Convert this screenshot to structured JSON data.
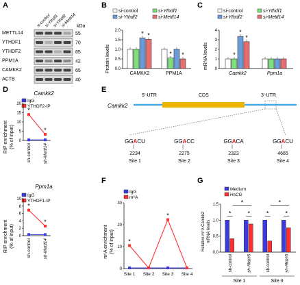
{
  "colors": {
    "control": "#ffffff",
    "ythdf1": "#7de07d",
    "ythdf2": "#6b9bd8",
    "mettl14": "#e86f6f",
    "igg": "#3b3be0",
    "ip": "#ff3030",
    "medium": "#3b3be0",
    "hscg": "#ff3030",
    "cds": "#f0b400",
    "utr": "#4aa8e0",
    "site": "#d62020"
  },
  "panels": {
    "A": {
      "label": "A",
      "lanes": [
        "si-control",
        "si-Ythdf1",
        "si-Ythdf2",
        "si-Mettl14"
      ],
      "kda_label": "kDa",
      "blots": [
        {
          "name": "METTL14",
          "kda": "55"
        },
        {
          "name": "YTHDF1",
          "kda": "70"
        },
        {
          "name": "YTHDF2",
          "kda": "65"
        },
        {
          "name": "PPM1A",
          "kda": "42"
        },
        {
          "name": "CAMKK2",
          "kda": "65"
        },
        {
          "name": "ACTB",
          "kda": "40"
        }
      ]
    },
    "B": {
      "label": "B",
      "legend": [
        "si-control",
        "si-Ythdf1",
        "si-Ythdf2",
        "si-Mettl14"
      ],
      "ylabel": "Protein levels",
      "star": "*"
    },
    "C": {
      "label": "C",
      "legend": [
        "si-control",
        "si-Ythdf1",
        "si-Ythdf2",
        "si-Mettl14"
      ],
      "ylabel": "mRNA levels",
      "star": "*"
    },
    "D": {
      "label": "D",
      "top_title": "Camkk2",
      "top_legend": [
        "IgG",
        "YTHDF2-IP"
      ],
      "bottom_title": "Ppm1a",
      "bottom_legend": [
        "IgG",
        "YTHDF1-IP"
      ],
      "ylabel": "RIP enrichment",
      "ylabel2": "(% of input)",
      "star": "*"
    },
    "E": {
      "label": "E",
      "gene": "Camkk2",
      "utr5": "5'-UTR",
      "cds": "CDS",
      "utr3": "3'-UTR",
      "sites": [
        {
          "pre": "GG",
          "A": "A",
          "post": "CU",
          "pos": "2234",
          "site": "Site 1"
        },
        {
          "pre": "GG",
          "A": "A",
          "post": "CC",
          "pos": "2275",
          "site": "Site 2"
        },
        {
          "pre": "GG",
          "A": "A",
          "post": "CA",
          "pos": "2323",
          "site": "Site 3"
        },
        {
          "pre": "GG",
          "A": "A",
          "post": "CU",
          "pos": "4665",
          "site": "Site 4"
        }
      ]
    },
    "F": {
      "label": "F",
      "legend": [
        "IgG",
        "m⁶A"
      ],
      "ylabel": "m⁶A enrichment",
      "ylabel2": "(% of input)",
      "star": "*"
    },
    "G": {
      "label": "G",
      "legend": [
        "Medium",
        "HsCG"
      ],
      "ylabel": "Relative m⁶A Camkk2",
      "ylabel2": "mRNA levels",
      "site_labels": [
        "Site 1",
        "Site 3"
      ],
      "star": "*"
    }
  },
  "chart_data": [
    {
      "panel": "B",
      "type": "bar",
      "categories": [
        "CAMKK2",
        "PPM1A"
      ],
      "series": [
        {
          "name": "si-control",
          "values": [
            1.0,
            1.0
          ]
        },
        {
          "name": "si-Ythdf1",
          "values": [
            1.0,
            0.55
          ]
        },
        {
          "name": "si-Ythdf2",
          "values": [
            1.6,
            1.0
          ]
        },
        {
          "name": "si-Mettl14",
          "values": [
            1.52,
            0.5
          ]
        }
      ],
      "ylabel": "Protein levels",
      "ylim": [
        0,
        2.0
      ],
      "yticks": [
        0.0,
        0.5,
        1.0,
        1.5,
        2.0
      ]
    },
    {
      "panel": "C",
      "type": "bar",
      "categories": [
        "Camkk2",
        "Ppm1a"
      ],
      "series": [
        {
          "name": "si-control",
          "values": [
            1.0,
            1.0
          ]
        },
        {
          "name": "si-Ythdf1",
          "values": [
            1.0,
            1.0
          ]
        },
        {
          "name": "si-Ythdf2",
          "values": [
            3.35,
            1.0
          ]
        },
        {
          "name": "si-Mettl14",
          "values": [
            2.8,
            1.0
          ]
        }
      ],
      "ylabel": "mRNA levels",
      "ylim": [
        0,
        4
      ],
      "yticks": [
        0,
        1,
        2,
        3,
        4
      ]
    },
    {
      "panel": "D-top",
      "type": "line",
      "title": "Camkk2",
      "categories": [
        "sh-control",
        "sh-Mettl14"
      ],
      "series": [
        {
          "name": "IgG",
          "values": [
            0.3,
            0.3
          ]
        },
        {
          "name": "YTHDF2-IP",
          "values": [
            14.0,
            3.3
          ]
        }
      ],
      "ylim": [
        0,
        20
      ],
      "yticks": [
        0,
        5,
        10,
        15,
        20
      ]
    },
    {
      "panel": "D-bottom",
      "type": "line",
      "title": "Ppm1a",
      "categories": [
        "sh-control",
        "sh-Mettl14"
      ],
      "series": [
        {
          "name": "IgG",
          "values": [
            0.3,
            0.3
          ]
        },
        {
          "name": "YTHDF1-IP",
          "values": [
            6.9,
            2.6
          ]
        }
      ],
      "ylim": [
        0,
        10
      ],
      "yticks": [
        0,
        2,
        4,
        6,
        8,
        10
      ]
    },
    {
      "panel": "F",
      "type": "line",
      "categories": [
        "Site 1",
        "Site 2",
        "Site 3",
        "Site 4"
      ],
      "series": [
        {
          "name": "IgG",
          "values": [
            0.3,
            0.3,
            0.3,
            0.3
          ]
        },
        {
          "name": "m⁶A",
          "values": [
            10.5,
            0.3,
            22.3,
            0.3
          ]
        }
      ],
      "ylim": [
        0,
        30
      ],
      "yticks": [
        0,
        10,
        20,
        30
      ]
    },
    {
      "panel": "G",
      "type": "bar",
      "categories": [
        "sh-control",
        "sh-Alkbh5",
        "sh-control",
        "sh-Alkbh5"
      ],
      "series": [
        {
          "name": "Medium",
          "values": [
            1.0,
            1.0,
            1.0,
            1.0
          ]
        },
        {
          "name": "HsCG",
          "values": [
            0.42,
            0.88,
            0.35,
            0.76
          ]
        }
      ],
      "ylim": [
        0,
        1.5
      ],
      "yticks": [
        0.0,
        0.5,
        1.0,
        1.5
      ]
    }
  ]
}
